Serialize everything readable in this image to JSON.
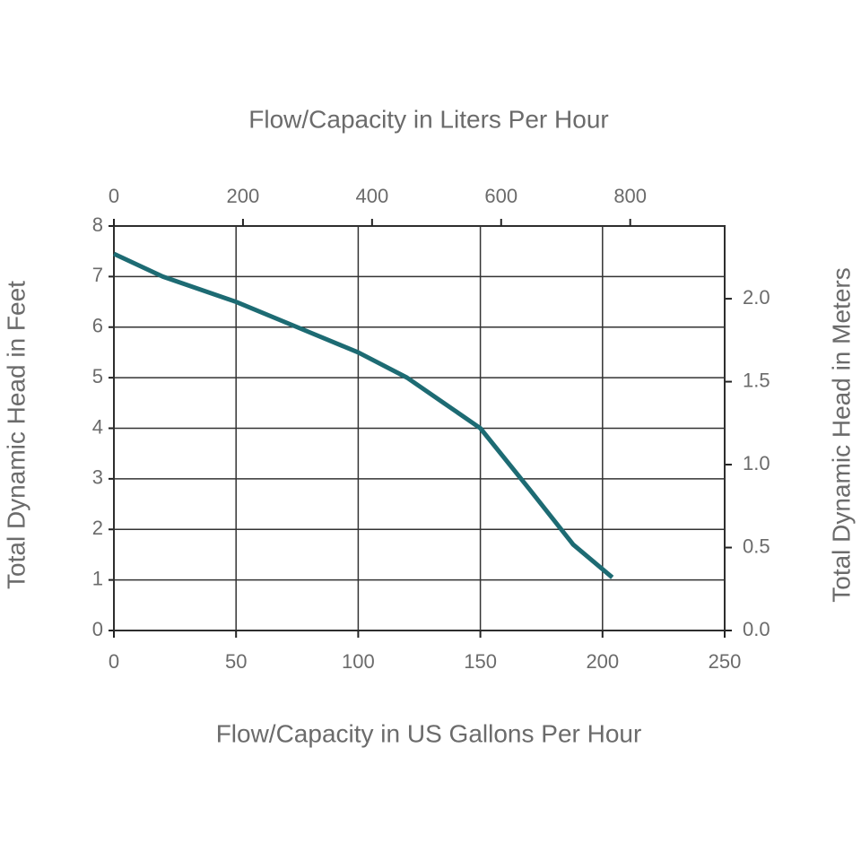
{
  "chart_data": {
    "type": "line",
    "title": "Flow/Capacity in Liters Per Hour",
    "xlabel": "Flow/Capacity in US Gallons Per Hour",
    "ylabel": "Total Dynamic Head in Feet",
    "y2label": "Total Dynamic Head in Meters",
    "x": [
      0,
      20,
      50,
      75,
      100,
      120,
      135,
      150,
      170,
      188,
      204
    ],
    "series": [
      {
        "color": "#1d6b73",
        "values": [
          7.45,
          7.0,
          6.5,
          6.0,
          5.5,
          5.0,
          4.5,
          4.0,
          2.8,
          1.7,
          1.05
        ]
      }
    ],
    "xlim": [
      0,
      250
    ],
    "xticks": [
      0,
      50,
      100,
      150,
      200,
      250
    ],
    "x2lim": [
      0,
      946.35
    ],
    "x2ticks": [
      0,
      200,
      400,
      600,
      800
    ],
    "ylim": [
      0,
      8
    ],
    "yticks": [
      0,
      1,
      2,
      3,
      4,
      5,
      6,
      7,
      8
    ],
    "y2lim": [
      0,
      2.4384
    ],
    "y2ticks": [
      {
        "value": 0,
        "label": "0.0"
      },
      0.5,
      {
        "value": 1,
        "label": "1.0"
      },
      1.5,
      {
        "value": 2,
        "label": "2.0"
      }
    ],
    "grid": true
  }
}
